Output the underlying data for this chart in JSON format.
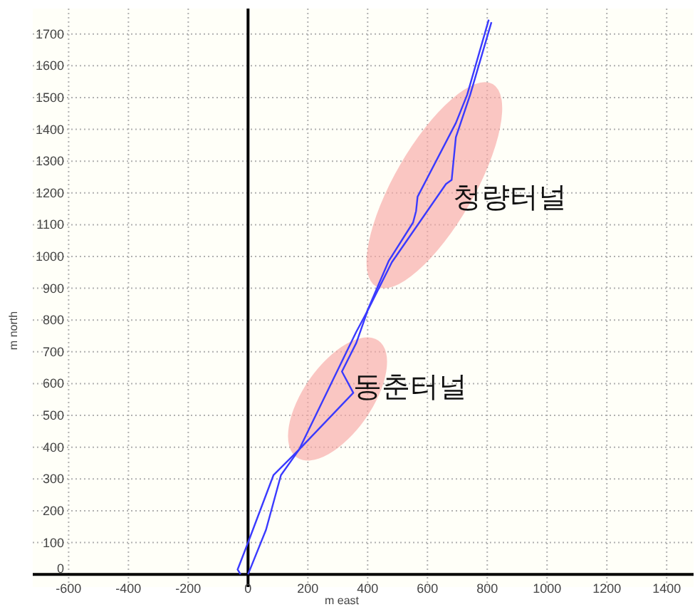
{
  "chart_data": {
    "type": "line",
    "xlabel": "m east",
    "ylabel": "m north",
    "xlim": [
      -720,
      1490
    ],
    "ylim": [
      -40,
      1780
    ],
    "xticks": [
      -600,
      -400,
      -200,
      0,
      200,
      400,
      600,
      800,
      1000,
      1200,
      1400
    ],
    "yticks": [
      0,
      100,
      200,
      300,
      400,
      500,
      600,
      700,
      800,
      900,
      1000,
      1100,
      1200,
      1300,
      1400,
      1500,
      1600,
      1700
    ],
    "grid": true,
    "marker": "none",
    "line_style": "solid",
    "series": [
      {
        "color": "#3a3aff",
        "x": [
          0,
          60,
          110,
          171,
          352,
          314,
          362,
          400,
          481,
          662,
          681,
          695,
          743,
          814
        ],
        "values": [
          0,
          140,
          312,
          393,
          571,
          638,
          728,
          830,
          982,
          1228,
          1241,
          1375,
          1509,
          1737
        ]
      },
      {
        "color": "#3a3aff",
        "x": [
          -25,
          -35,
          0,
          85,
          171,
          362,
          395,
          471,
          552,
          562,
          567,
          695,
          733,
          805
        ],
        "values": [
          0,
          15,
          100,
          312,
          393,
          763,
          821,
          987,
          1107,
          1143,
          1188,
          1420,
          1509,
          1745
        ]
      }
    ],
    "annotations": [
      "청량터널",
      "동춘터널"
    ]
  }
}
